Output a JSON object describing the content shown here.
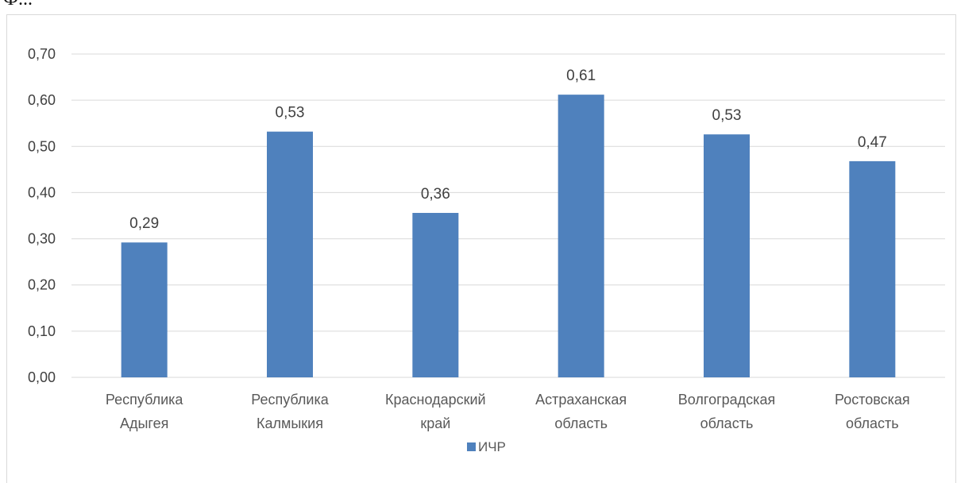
{
  "page": {
    "top_text_fragment": "Ф..."
  },
  "chart_data": {
    "type": "bar",
    "categories": [
      [
        "Республика",
        "Адыгея"
      ],
      [
        "Республика",
        "Калмыкия"
      ],
      [
        "Краснодарский",
        "край"
      ],
      [
        "Астраханская",
        "область"
      ],
      [
        "Волгоградская",
        "область"
      ],
      [
        "Ростовская",
        "область"
      ]
    ],
    "series": [
      {
        "name": "ИЧР",
        "values": [
          0.292,
          0.532,
          0.356,
          0.612,
          0.526,
          0.468
        ],
        "data_labels": [
          "0,29",
          "0,53",
          "0,36",
          "0,61",
          "0,53",
          "0,47"
        ]
      }
    ],
    "y_ticks": [
      "0,00",
      "0,10",
      "0,20",
      "0,30",
      "0,40",
      "0,50",
      "0,60",
      "0,70"
    ],
    "ylim": [
      0,
      0.7
    ],
    "grid": true,
    "legend_position": "bottom",
    "colors": {
      "bar": "#4f81bd",
      "grid": "#d9d9d9"
    }
  }
}
